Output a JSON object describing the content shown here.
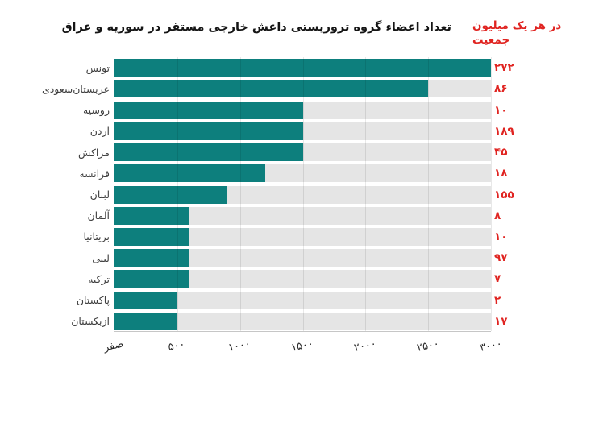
{
  "title": "تعداد اعضاء گروه تروریستی داعش خارجی مستقر در سوریه و عراق",
  "annotation": {
    "line1": "در هر یک میلیون",
    "line2": "جمعیت"
  },
  "colors": {
    "bar_teal": "#0d7f7d",
    "track_gray": "#e5e5e5",
    "accent_red": "#e02421",
    "label_gray": "#3f3f3f"
  },
  "chart_data": {
    "type": "bar",
    "orientation": "horizontal",
    "title": "تعداد اعضاء گروه تروریستی داعش خارجی مستقر در سوریه و عراق",
    "annotation": "در هر یک میلیون جمعیت",
    "categories": [
      "تونس",
      "عربستان‌سعودی",
      "روسیه",
      "اردن",
      "مراکش",
      "فرانسه",
      "لبنان",
      "آلمان",
      "بریتانیا",
      "لیبی",
      "ترکیه",
      "پاکستان",
      "ازبکستان"
    ],
    "values": [
      3000,
      2500,
      1500,
      1500,
      1500,
      1200,
      900,
      600,
      600,
      600,
      600,
      500,
      500
    ],
    "per_million_values": [
      272,
      86,
      10,
      189,
      45,
      18,
      155,
      8,
      10,
      97,
      7,
      2,
      17
    ],
    "per_million_labels": [
      "۲۷۲",
      "۸۶",
      "۱۰",
      "۱۸۹",
      "۴۵",
      "۱۸",
      "۱۵۵",
      "۸",
      "۱۰",
      "۹۷",
      "۷",
      "۲",
      "۱۷"
    ],
    "x_tick_labels": [
      "صفر",
      "۵۰۰",
      "۱۰۰۰",
      "۱۵۰۰",
      "۲۰۰۰",
      "۲۵۰۰",
      "۳۰۰۰"
    ],
    "x_tick_values": [
      0,
      500,
      1000,
      1500,
      2000,
      2500,
      3000
    ],
    "xlim": [
      0,
      3000
    ],
    "grid": true,
    "legend": false,
    "bar_color": "#0d7f7d",
    "value_label_color": "#e02421"
  }
}
